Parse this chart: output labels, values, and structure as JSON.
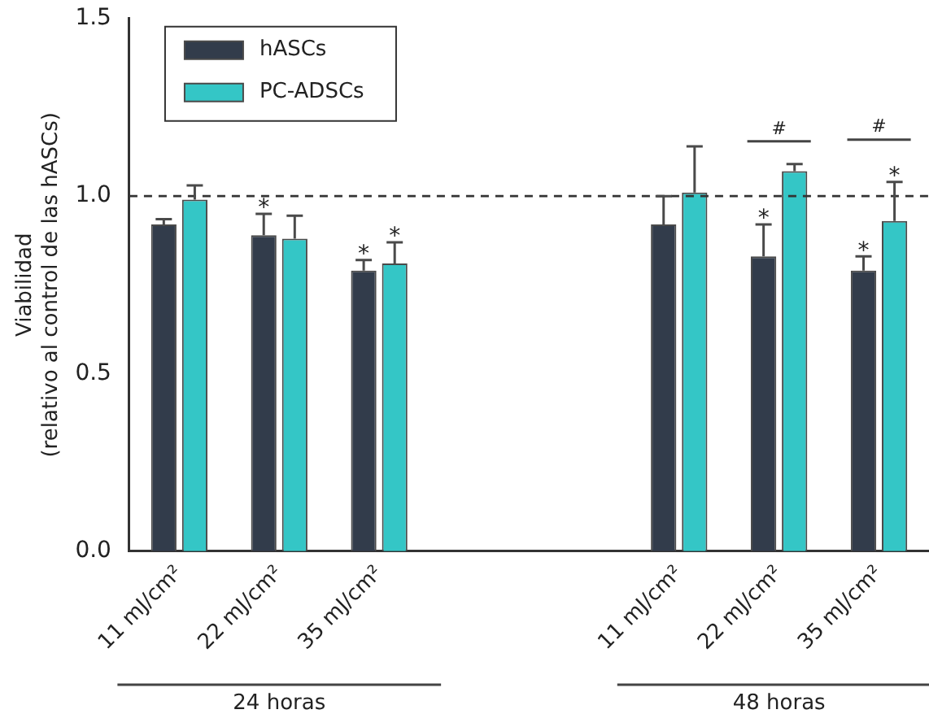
{
  "chart_data": {
    "type": "bar",
    "ylabel": "Viabilidad\n(relativo al control de las hASCs)",
    "categories": [
      "11 mJ/cm²",
      "22 mJ/cm²",
      "35 mJ/cm²",
      null,
      null,
      "11 mJ/cm²",
      "22 mJ/cm²",
      "35 mJ/cm²"
    ],
    "series": [
      {
        "name": "hASCs",
        "color": "#323c4b",
        "values": [
          0.92,
          0.89,
          0.79,
          null,
          null,
          0.92,
          0.83,
          0.79
        ],
        "errors": [
          [
            0.92,
            0.935
          ],
          [
            0.89,
            0.95
          ],
          [
            0.79,
            0.82
          ],
          null,
          null,
          [
            0.92,
            1.0
          ],
          [
            0.83,
            0.92
          ],
          [
            0.79,
            0.83
          ]
        ],
        "value_labels": [
          null,
          "*",
          "*",
          null,
          null,
          null,
          "*",
          "*"
        ]
      },
      {
        "name": "PC-ADSCs",
        "color": "#34c6c6",
        "values": [
          0.99,
          0.88,
          0.81,
          null,
          null,
          1.01,
          1.07,
          0.93
        ],
        "errors": [
          [
            0.99,
            1.03
          ],
          [
            0.88,
            0.945
          ],
          [
            0.81,
            0.87
          ],
          null,
          null,
          [
            1.01,
            1.14
          ],
          [
            1.07,
            1.09
          ],
          [
            0.93,
            1.04
          ]
        ],
        "value_labels": [
          null,
          null,
          "*",
          null,
          null,
          null,
          null,
          "*"
        ]
      }
    ],
    "ylim": [
      0,
      1.5
    ],
    "yticks": [
      {
        "value": 0,
        "label": "0.0"
      },
      {
        "value": 0.5,
        "label": "0.5"
      },
      {
        "value": 1,
        "label": "1.0"
      },
      {
        "value": 1.5,
        "label": "1.5"
      }
    ],
    "ref_lines": [
      {
        "axis": "y",
        "value": 1,
        "color": "#333333",
        "line_style": "dashed"
      }
    ],
    "annotations": [
      "#",
      "#",
      "24 horas",
      "48 horas"
    ],
    "legend": "top left",
    "grid": false
  }
}
